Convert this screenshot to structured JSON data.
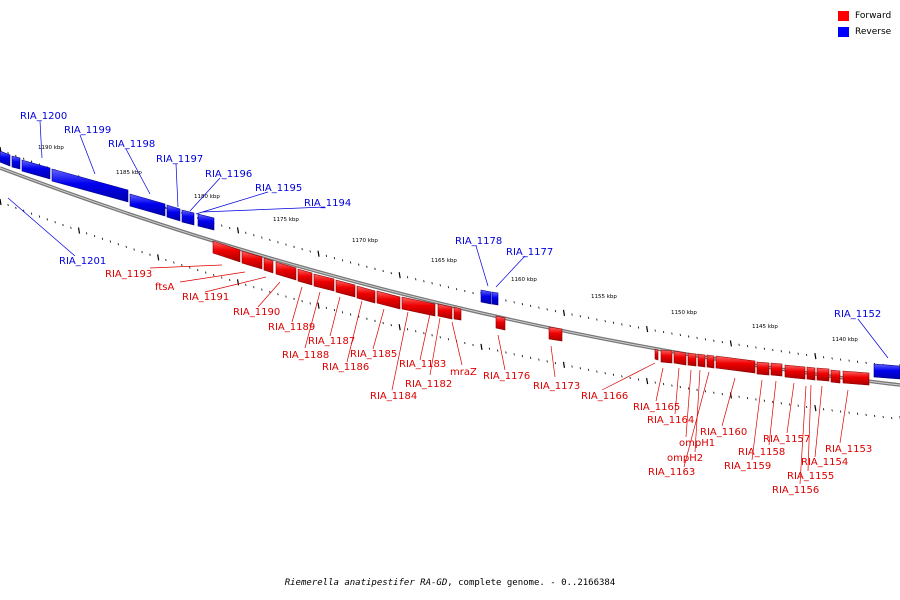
{
  "legend": {
    "forward": {
      "label": "Forward",
      "color": "#ff0000"
    },
    "reverse": {
      "label": "Reverse",
      "color": "#0000ff"
    }
  },
  "footer": {
    "organism": "Riemerella anatipestifer RA-GD",
    "rest": ", complete genome. - 0..2166384"
  },
  "scale_labels": [
    "1190 kbp",
    "1185 kbp",
    "1180 kbp",
    "1175 kbp",
    "1170 kbp",
    "1165 kbp",
    "1160 kbp",
    "1155 kbp",
    "1150 kbp",
    "1145 kbp",
    "1140 kbp"
  ],
  "genes": {
    "reverse": [
      "RIA_1200",
      "RIA_1199",
      "RIA_1198",
      "RIA_1197",
      "RIA_1196",
      "RIA_1195",
      "RIA_1194",
      "RIA_1201",
      "RIA_1178",
      "RIA_1177",
      "RIA_1152"
    ],
    "forward": [
      "RIA_1193",
      "ftsA",
      "RIA_1191",
      "RIA_1190",
      "RIA_1189",
      "RIA_1188",
      "RIA_1187",
      "RIA_1186",
      "RIA_1185",
      "RIA_1184",
      "RIA_1183",
      "RIA_1182",
      "mraZ",
      "RIA_1176",
      "RIA_1173",
      "RIA_1166",
      "RIA_1165",
      "RIA_1164",
      "ompH1",
      "ompH2",
      "RIA_1163",
      "RIA_1160",
      "RIA_1159",
      "RIA_1158",
      "RIA_1157",
      "RIA_1155",
      "RIA_1156",
      "RIA_1154",
      "RIA_1153"
    ]
  }
}
